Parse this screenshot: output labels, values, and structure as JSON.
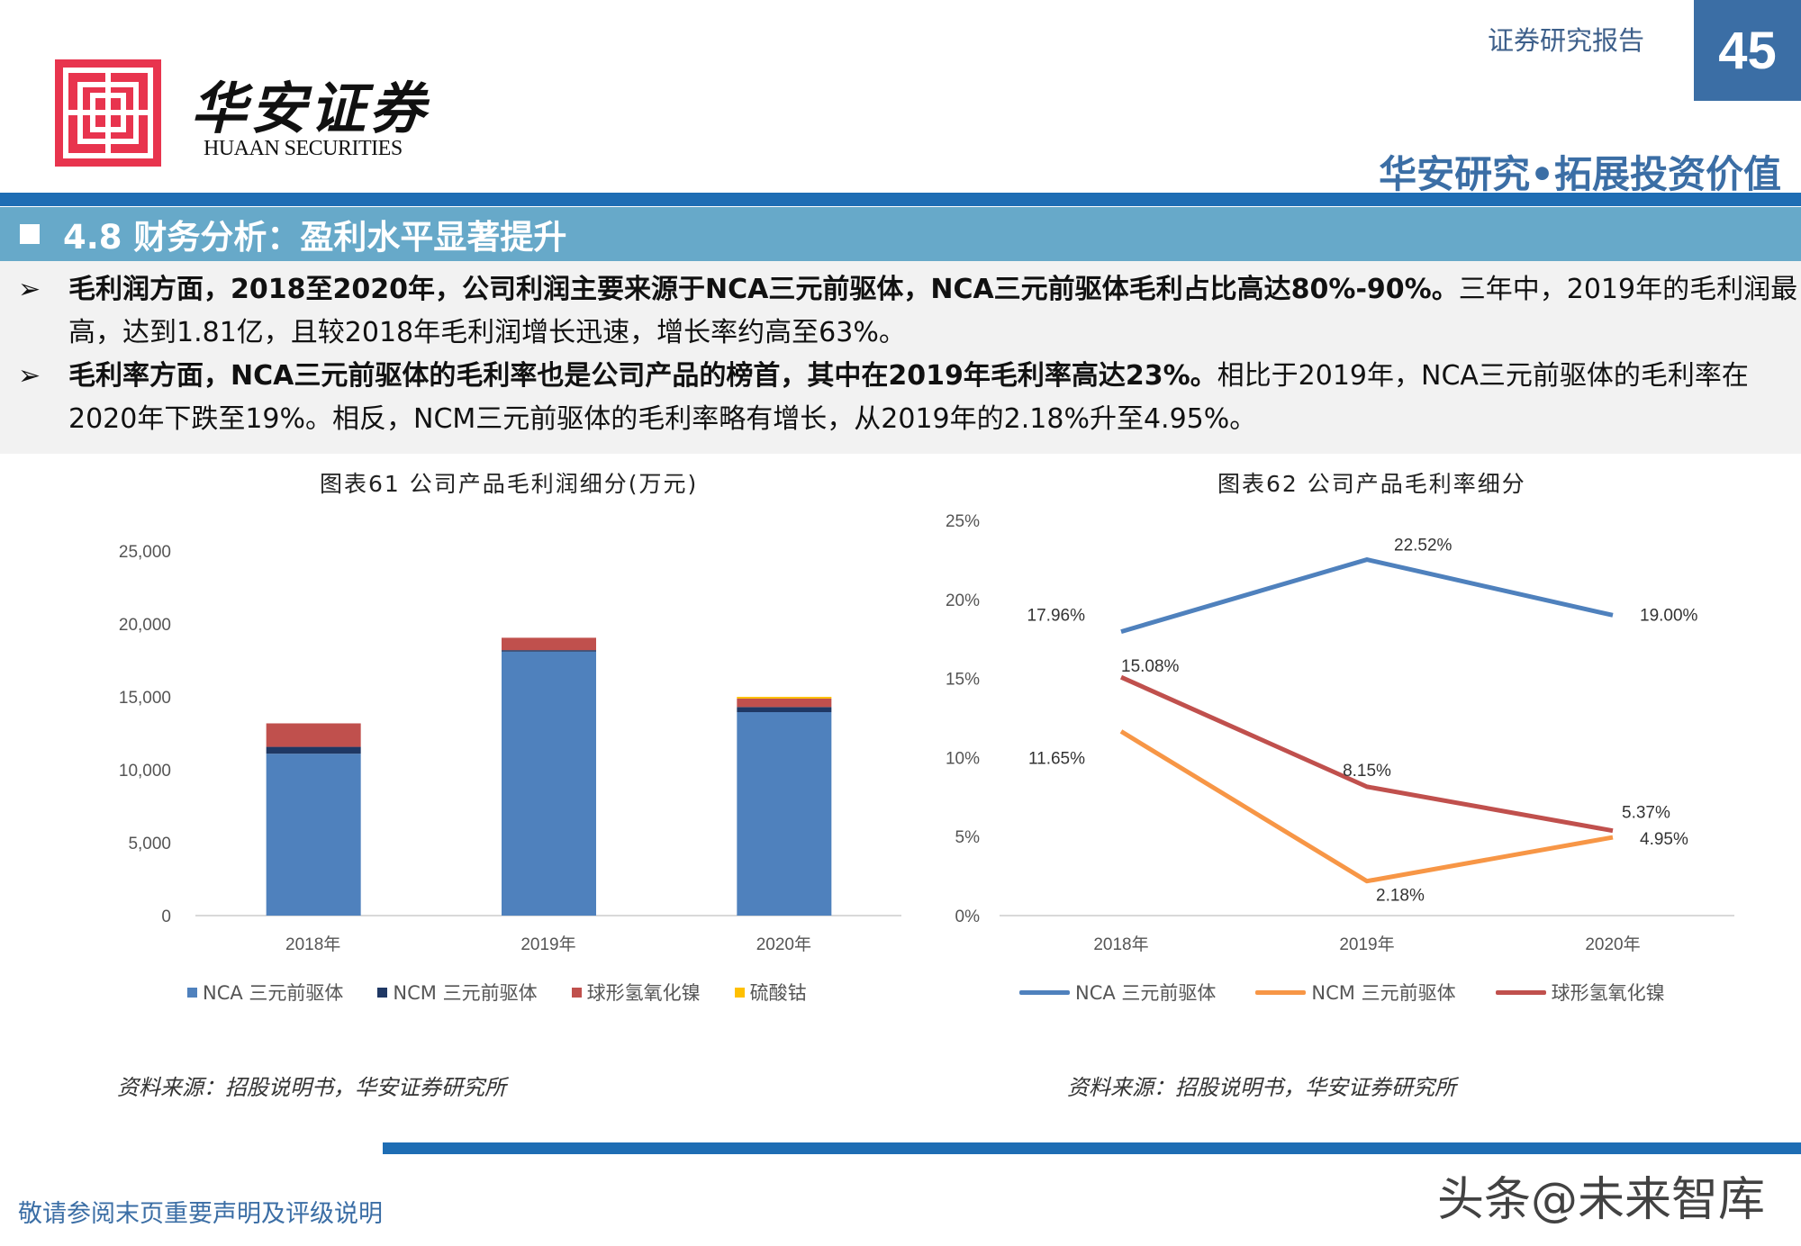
{
  "header": {
    "brand_cn": "华安证券",
    "brand_en": "HUAAN SECURITIES",
    "report_type": "证券研究报告",
    "page_number": "45",
    "slogan": "华安研究•拓展投资价值",
    "colors": {
      "brand_red": "#e8344e",
      "brand_blue": "#3b6ea5"
    }
  },
  "section": {
    "title": "4.8 财务分析：盈利水平显著提升"
  },
  "bullets": [
    {
      "bold": "毛利润方面，2018至2020年，公司利润主要来源于NCA三元前驱体，NCA三元前驱体毛利占比高达80%-90%。",
      "normal": "三年中，2019年的毛利润最高，达到1.81亿，且较2018年毛利润增长迅速，增长率约高至63%。"
    },
    {
      "bold": "毛利率方面，NCA三元前驱体的毛利率也是公司产品的榜首，其中在2019年毛利率高达23%。",
      "normal": "相比于2019年，NCA三元前驱体的毛利率在2020年下跌至19%。相反，NCM三元前驱体的毛利率略有增长，从2019年的2.18%升至4.95%。"
    }
  ],
  "chart_data": [
    {
      "type": "bar",
      "stacked": true,
      "title": "图表61  公司产品毛利润细分(万元)",
      "categories": [
        "2018年",
        "2019年",
        "2020年"
      ],
      "ylim": [
        0,
        25000
      ],
      "yticks": [
        "0",
        "5,000",
        "10,000",
        "15,000",
        "20,000",
        "25,000"
      ],
      "legend_position": "bottom",
      "grid": false,
      "series": [
        {
          "name": "NCA 三元前驱体",
          "color": "#4f81bd",
          "values": [
            11100,
            18100,
            13950
          ]
        },
        {
          "name": "NCM 三元前驱体",
          "color": "#1f3864",
          "values": [
            470,
            100,
            350
          ]
        },
        {
          "name": "球形氢氧化镍",
          "color": "#c0504d",
          "values": [
            1610,
            850,
            580
          ]
        },
        {
          "name": "硫酸钴",
          "color": "#ffc000",
          "values": [
            0,
            0,
            120
          ]
        }
      ],
      "source": "资料来源：招股说明书，华安证券研究所"
    },
    {
      "type": "line",
      "title": "图表62  公司产品毛利率细分",
      "categories": [
        "2018年",
        "2019年",
        "2020年"
      ],
      "ylim": [
        0,
        25
      ],
      "yticks": [
        "0%",
        "5%",
        "10%",
        "15%",
        "20%",
        "25%"
      ],
      "legend_position": "bottom",
      "grid": false,
      "series": [
        {
          "name": "NCA 三元前驱体",
          "color": "#4f81bd",
          "values": [
            17.96,
            22.52,
            19.0
          ],
          "labels": [
            "17.96%",
            "22.52%",
            "19.00%"
          ]
        },
        {
          "name": "NCM 三元前驱体",
          "color": "#f79646",
          "values": [
            11.65,
            2.18,
            4.95
          ],
          "labels": [
            "11.65%",
            "2.18%",
            "4.95%"
          ]
        },
        {
          "name": "球形氢氧化镍",
          "color": "#c0504d",
          "values": [
            15.08,
            8.15,
            5.37
          ],
          "labels": [
            "15.08%",
            "8.15%",
            "5.37%"
          ]
        }
      ],
      "source": "资料来源：招股说明书，华安证券研究所"
    }
  ],
  "footer": {
    "disclaimer": "敬请参阅末页重要声明及评级说明",
    "watermark": "头条@未来智库"
  }
}
